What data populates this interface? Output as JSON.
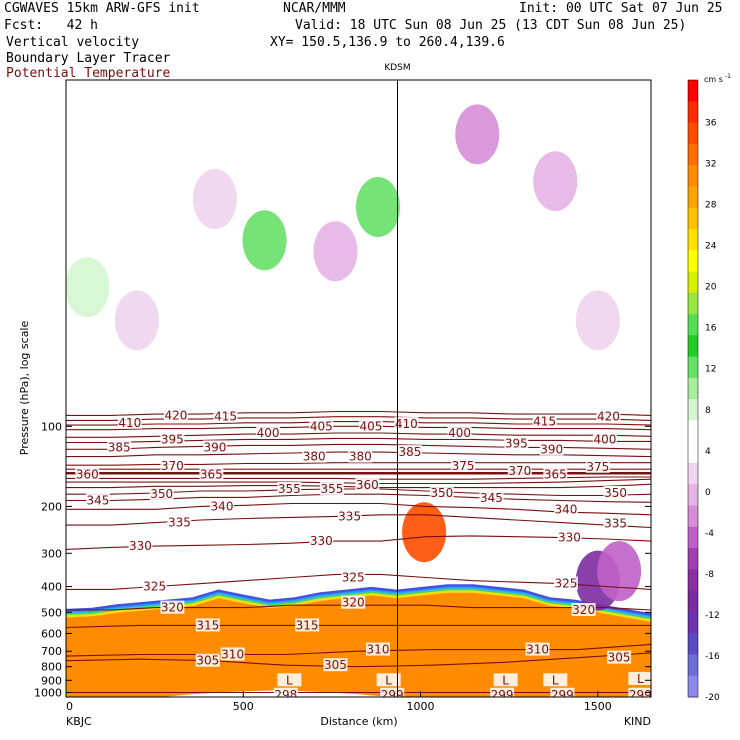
{
  "header": {
    "model": "CGWAVES 15km ARW-GFS init",
    "org": "NCAR/MMM",
    "init": "Init: 00 UTC Sat 07 Jun 25",
    "fcst": "Fcst:   42 h",
    "valid": "Valid: 18 UTC Sun 08 Jun 25 (13 CDT Sun 08 Jun 25)",
    "field1": "Vertical velocity",
    "field2": "Boundary Layer Tracer",
    "field3": "Potential Temperature",
    "field3_color": "#7a1010",
    "xy": "XY= 150.5,136.9 to 260.4,139.6"
  },
  "chart_data": {
    "type": "heatmap",
    "title": "",
    "xlabel": "Distance (km)",
    "ylabel": "Pressure (hPa), log scale",
    "xlim": [
      0,
      1650
    ],
    "ylim": [
      1040,
      5
    ],
    "y_log": true,
    "x_ticks": [
      0,
      500,
      1000,
      1500
    ],
    "x_tick_labels": [
      "0",
      "500",
      "1000",
      "1500"
    ],
    "y_ticks": [
      100,
      200,
      300,
      400,
      500,
      600,
      700,
      800,
      900,
      1000
    ],
    "y_tick_labels": [
      "100",
      "200",
      "300",
      "400",
      "500",
      "600",
      "700",
      "800",
      "900",
      "1000"
    ],
    "left_station": "KBJC",
    "right_station": "KIND",
    "marker": {
      "label": "KDSM",
      "x": 935
    },
    "colorbar": {
      "unit": "cm s",
      "unit_sup": "-1",
      "colors": [
        "#ff0000",
        "#ff2a00",
        "#ff4d00",
        "#ff6e00",
        "#ff8c00",
        "#ffa300",
        "#ffc000",
        "#ffe000",
        "#ffff00",
        "#d8f000",
        "#99e640",
        "#55dd55",
        "#22cc22",
        "#66e066",
        "#a8ee9e",
        "#d4f6cf",
        "#ffffff",
        "#ffffff",
        "#f0d4f0",
        "#e6b3e6",
        "#d68ed6",
        "#c060c8",
        "#a040b0",
        "#8a2ea0",
        "#7a2c9e",
        "#6c32b0",
        "#5c4ac4",
        "#6e6ed8",
        "#8a8ae8"
      ],
      "tick_labels": [
        "36",
        "32",
        "28",
        "24",
        "20",
        "16",
        "12",
        "8",
        "4",
        "0",
        "-4",
        "-8",
        "-12",
        "-16",
        "-20"
      ]
    },
    "isentropes": [
      {
        "value": 298,
        "p": [
          1000,
          1000
        ]
      },
      {
        "value": 299,
        "p": [
          1000,
          1000,
          1000
        ]
      },
      {
        "value": 305,
        "p": [
          760,
          750,
          760,
          790,
          800,
          790,
          770,
          740,
          710
        ]
      },
      {
        "value": 310,
        "p": [
          730,
          720,
          720,
          720,
          700,
          690,
          690,
          690,
          660
        ]
      },
      {
        "value": 315,
        "p": [
          570,
          560,
          560,
          560,
          560,
          560,
          560,
          560,
          560
        ]
      },
      {
        "value": 320,
        "p": [
          490,
          490,
          480,
          480,
          480,
          470,
          470,
          470,
          470,
          480,
          480,
          480,
          480,
          490
        ]
      },
      {
        "value": 325,
        "p": [
          410,
          410,
          400,
          390,
          380,
          370,
          360,
          360,
          370,
          380,
          385,
          390,
          400,
          410
        ]
      },
      {
        "value": 330,
        "p": [
          290,
          285,
          282,
          280,
          278,
          275,
          270,
          270,
          260,
          258,
          260,
          262,
          265,
          270
        ]
      },
      {
        "value": 335,
        "p": [
          235,
          235,
          230,
          225,
          222,
          220,
          218,
          215,
          215,
          220,
          225,
          230,
          235,
          240
        ]
      },
      {
        "value": 340,
        "p": [
          205,
          205,
          205,
          200,
          198,
          195,
          195,
          195,
          200,
          202,
          205,
          210,
          212,
          215
        ]
      },
      {
        "value": 345,
        "p": [
          190,
          190,
          188,
          185,
          185,
          182,
          180,
          180,
          182,
          185,
          188,
          190,
          192,
          193
        ]
      },
      {
        "value": 350,
        "p": [
          180,
          180,
          178,
          175,
          175,
          173,
          172,
          172,
          175,
          178,
          180,
          182,
          182,
          180
        ]
      },
      {
        "value": 355,
        "p": [
          170,
          170,
          168,
          168,
          167,
          167,
          168,
          170,
          170,
          170,
          170,
          170,
          168,
          165
        ]
      },
      {
        "value": 360,
        "p": [
          162,
          162,
          162,
          162,
          162,
          162,
          163,
          164,
          164,
          164,
          163,
          162,
          160,
          158
        ]
      },
      {
        "value": 365,
        "p": [
          157,
          157,
          157,
          157,
          157,
          157,
          157,
          158,
          158,
          158,
          157,
          156,
          155,
          155
        ]
      },
      {
        "value": 370,
        "p": [
          150,
          150,
          150,
          150,
          150,
          150,
          150,
          150,
          150,
          150,
          150,
          150,
          150,
          150
        ]
      },
      {
        "value": 375,
        "p": [
          145,
          145,
          145,
          145,
          145,
          145,
          145,
          145,
          145,
          145,
          145,
          145,
          145,
          145
        ]
      },
      {
        "value": 380,
        "p": [
          140,
          140,
          139,
          139,
          138,
          138,
          137,
          137,
          137,
          137,
          137,
          137,
          137,
          137
        ]
      },
      {
        "value": 385,
        "p": [
          130,
          130,
          128,
          128,
          127,
          126,
          125,
          125,
          126,
          127,
          128,
          128,
          129,
          130
        ]
      },
      {
        "value": 390,
        "p": [
          122,
          122,
          120,
          119,
          118,
          118,
          117,
          117,
          118,
          119,
          120,
          120,
          121,
          122
        ]
      },
      {
        "value": 395,
        "p": [
          115,
          115,
          114,
          113,
          112,
          112,
          111,
          111,
          112,
          112,
          113,
          113,
          114,
          114
        ]
      },
      {
        "value": 400,
        "p": [
          110,
          110,
          109,
          108,
          107,
          107,
          106,
          106,
          107,
          107,
          108,
          108,
          108,
          109
        ]
      },
      {
        "value": 405,
        "p": [
          103,
          103,
          102,
          102,
          101,
          101,
          100,
          100,
          101,
          101,
          102,
          102,
          102,
          103
        ]
      },
      {
        "value": 410,
        "p": [
          99,
          99,
          98,
          98,
          97,
          97,
          96,
          96,
          97,
          97,
          98,
          98,
          98,
          99
        ]
      },
      {
        "value": 415,
        "p": [
          95,
          95,
          94,
          94,
          93,
          93,
          92,
          92,
          93,
          93,
          94,
          94,
          94,
          95
        ]
      },
      {
        "value": 420,
        "p": [
          91,
          91,
          90,
          90,
          89,
          89,
          88,
          88,
          89,
          89,
          90,
          90,
          90,
          91
        ]
      }
    ],
    "isentrope_labels": [
      {
        "text": "420",
        "x": 310,
        "p": 91
      },
      {
        "text": "415",
        "x": 450,
        "p": 92
      },
      {
        "text": "410",
        "x": 180,
        "p": 97
      },
      {
        "text": "405",
        "x": 720,
        "p": 100
      },
      {
        "text": "405",
        "x": 860,
        "p": 100
      },
      {
        "text": "410",
        "x": 960,
        "p": 98
      },
      {
        "text": "415",
        "x": 1350,
        "p": 96
      },
      {
        "text": "420",
        "x": 1530,
        "p": 92
      },
      {
        "text": "400",
        "x": 570,
        "p": 106
      },
      {
        "text": "400",
        "x": 1110,
        "p": 106
      },
      {
        "text": "400",
        "x": 1520,
        "p": 112
      },
      {
        "text": "395",
        "x": 300,
        "p": 112
      },
      {
        "text": "390",
        "x": 420,
        "p": 120
      },
      {
        "text": "395",
        "x": 1270,
        "p": 116
      },
      {
        "text": "390",
        "x": 1370,
        "p": 122
      },
      {
        "text": "385",
        "x": 150,
        "p": 120
      },
      {
        "text": "385",
        "x": 970,
        "p": 125
      },
      {
        "text": "380",
        "x": 700,
        "p": 130
      },
      {
        "text": "380",
        "x": 830,
        "p": 130
      },
      {
        "text": "375",
        "x": 1120,
        "p": 141
      },
      {
        "text": "375",
        "x": 1500,
        "p": 142
      },
      {
        "text": "370",
        "x": 300,
        "p": 141
      },
      {
        "text": "370",
        "x": 1280,
        "p": 147
      },
      {
        "text": "365",
        "x": 410,
        "p": 152
      },
      {
        "text": "365",
        "x": 1380,
        "p": 152
      },
      {
        "text": "360",
        "x": 60,
        "p": 152
      },
      {
        "text": "360",
        "x": 850,
        "p": 166
      },
      {
        "text": "355",
        "x": 630,
        "p": 172
      },
      {
        "text": "355",
        "x": 750,
        "p": 172
      },
      {
        "text": "350",
        "x": 270,
        "p": 180
      },
      {
        "text": "350",
        "x": 1060,
        "p": 178
      },
      {
        "text": "350",
        "x": 1550,
        "p": 178
      },
      {
        "text": "345",
        "x": 90,
        "p": 190
      },
      {
        "text": "345",
        "x": 1200,
        "p": 186
      },
      {
        "text": "340",
        "x": 440,
        "p": 200
      },
      {
        "text": "340",
        "x": 1410,
        "p": 205
      },
      {
        "text": "335",
        "x": 320,
        "p": 230
      },
      {
        "text": "335",
        "x": 800,
        "p": 218
      },
      {
        "text": "335",
        "x": 1550,
        "p": 232
      },
      {
        "text": "330",
        "x": 210,
        "p": 282
      },
      {
        "text": "330",
        "x": 720,
        "p": 270
      },
      {
        "text": "330",
        "x": 1420,
        "p": 262
      },
      {
        "text": "325",
        "x": 250,
        "p": 400
      },
      {
        "text": "325",
        "x": 810,
        "p": 370
      },
      {
        "text": "325",
        "x": 1410,
        "p": 390
      },
      {
        "text": "320",
        "x": 300,
        "p": 480
      },
      {
        "text": "320",
        "x": 810,
        "p": 460
      },
      {
        "text": "320",
        "x": 1460,
        "p": 490
      },
      {
        "text": "315",
        "x": 400,
        "p": 560
      },
      {
        "text": "315",
        "x": 680,
        "p": 560
      },
      {
        "text": "310",
        "x": 470,
        "p": 720
      },
      {
        "text": "310",
        "x": 880,
        "p": 690
      },
      {
        "text": "310",
        "x": 1330,
        "p": 690
      },
      {
        "text": "305",
        "x": 400,
        "p": 760
      },
      {
        "text": "305",
        "x": 760,
        "p": 790
      },
      {
        "text": "305",
        "x": 1560,
        "p": 740
      },
      {
        "text": "298",
        "x": 620,
        "p": 1020
      },
      {
        "text": "299",
        "x": 920,
        "p": 1020
      },
      {
        "text": "299",
        "x": 1230,
        "p": 1020
      },
      {
        "text": "299",
        "x": 1400,
        "p": 1020
      },
      {
        "text": "299",
        "x": 1620,
        "p": 1020
      },
      {
        "text": "L",
        "x": 630,
        "p": 900
      },
      {
        "text": "L",
        "x": 910,
        "p": 900
      },
      {
        "text": "L",
        "x": 1240,
        "p": 900
      },
      {
        "text": "L",
        "x": 1380,
        "p": 900
      },
      {
        "text": "L",
        "x": 1620,
        "p": 890
      }
    ],
    "tracer_top_p": [
      520,
      515,
      500,
      490,
      480,
      470,
      440,
      460,
      480,
      470,
      450,
      440,
      430,
      440,
      430,
      420,
      420,
      430,
      440,
      470,
      480,
      500,
      520,
      540
    ],
    "series": [
      {
        "name": "Vertical velocity",
        "kind": "shaded"
      },
      {
        "name": "Boundary Layer Tracer",
        "kind": "shaded"
      },
      {
        "name": "Potential Temperature",
        "kind": "contour"
      }
    ]
  }
}
